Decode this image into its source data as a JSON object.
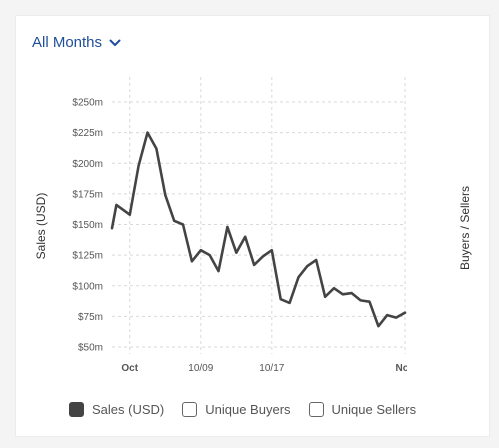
{
  "filter": {
    "label": "All Months",
    "icon": "chevron-down-icon"
  },
  "chart_data": {
    "type": "line",
    "ylabel_left": "Sales (USD)",
    "ylabel_right": "Buyers / Sellers",
    "y_ticks": [
      "$250m",
      "$225m",
      "$200m",
      "$175m",
      "$150m",
      "$125m",
      "$100m",
      "$75m",
      "$50m"
    ],
    "y_tick_values": [
      250,
      225,
      200,
      175,
      150,
      125,
      100,
      75,
      50
    ],
    "ylim": [
      50,
      250
    ],
    "x_ticks": [
      {
        "label": "Oct",
        "bold": true,
        "x": 2
      },
      {
        "label": "10/09",
        "bold": false,
        "x": 10
      },
      {
        "label": "10/17",
        "bold": false,
        "x": 18
      },
      {
        "label": "Nov",
        "bold": true,
        "x": 33
      }
    ],
    "xlim": [
      0,
      33
    ],
    "grid": true,
    "series": [
      {
        "name": "Sales (USD)",
        "color": "#444444",
        "x": [
          0,
          0.5,
          2,
          3,
          4,
          5,
          6,
          7,
          8,
          9,
          10,
          11,
          12,
          13,
          14,
          15,
          16,
          17,
          18,
          19,
          20,
          21,
          22,
          23,
          24,
          25,
          26,
          27,
          28,
          29,
          30,
          31,
          32,
          33
        ],
        "values": [
          147,
          166,
          158,
          198,
          225,
          212,
          174,
          153,
          150,
          120,
          129,
          125,
          112,
          148,
          127,
          140,
          117,
          124,
          129,
          89,
          86,
          107,
          116,
          121,
          91,
          98,
          93,
          94,
          88,
          87,
          67,
          76,
          74,
          78
        ]
      }
    ]
  },
  "legend": [
    {
      "label": "Sales (USD)",
      "checked": true
    },
    {
      "label": "Unique Buyers",
      "checked": false
    },
    {
      "label": "Unique Sellers",
      "checked": false
    }
  ]
}
